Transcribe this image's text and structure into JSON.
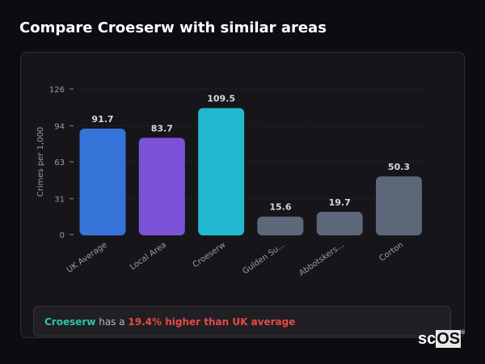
{
  "title": "Compare Croeserw with similar areas",
  "chart_data": {
    "type": "bar",
    "ylabel": "Crimes per 1,000",
    "ylim": [
      0,
      126
    ],
    "yticks": [
      0,
      31,
      63,
      94,
      126
    ],
    "grid": true,
    "categories": [
      "UK Average",
      "Local Area",
      "Croeserw",
      "Gulden Su...",
      "Abbotskers...",
      "Corton"
    ],
    "values": [
      91.7,
      83.7,
      109.5,
      15.6,
      19.7,
      50.3
    ],
    "data_labels": [
      "91.7",
      "83.7",
      "109.5",
      "15.6",
      "19.7",
      "50.3"
    ],
    "colors": [
      "#3673d9",
      "#7b52d6",
      "#22b8cf",
      "#5d677a",
      "#5d677a",
      "#5d677a"
    ]
  },
  "summary": {
    "place": "Croeserw",
    "middle": " has a ",
    "difference": "19.4% higher than UK average"
  },
  "logo": {
    "text_a": "sc",
    "text_b": "OS",
    "mark": "®"
  }
}
